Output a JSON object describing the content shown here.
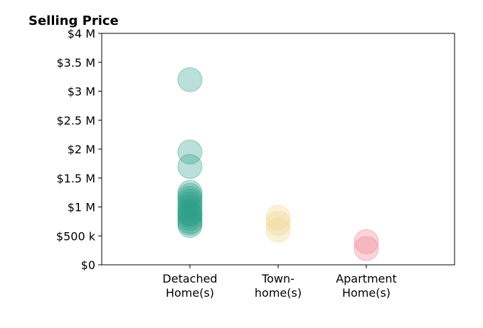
{
  "chart_data": {
    "type": "scatter",
    "title": "Selling Price",
    "xlabel": "",
    "ylabel": "",
    "ylim": [
      0,
      4000000
    ],
    "yticks": [
      {
        "value": 0,
        "label": "$0"
      },
      {
        "value": 500000,
        "label": "$500 k"
      },
      {
        "value": 1000000,
        "label": "$1 M"
      },
      {
        "value": 1500000,
        "label": "$1.5 M"
      },
      {
        "value": 2000000,
        "label": "$2 M"
      },
      {
        "value": 2500000,
        "label": "$2.5 M"
      },
      {
        "value": 3000000,
        "label": "$3 M"
      },
      {
        "value": 3500000,
        "label": "$3.5 M"
      },
      {
        "value": 4000000,
        "label": "$4 M"
      }
    ],
    "categories": [
      [
        "Detached",
        "Home(s)"
      ],
      [
        "Town-",
        "home(s)"
      ],
      [
        "Apartment",
        "Home(s)"
      ]
    ],
    "grid": false,
    "legend": "none",
    "series": [
      {
        "category_index": 0,
        "color": "#2aa08a",
        "values": [
          3200000,
          1950000,
          1700000,
          1250000,
          1200000,
          1150000,
          1100000,
          1050000,
          1000000,
          950000,
          900000,
          880000,
          850000,
          800000,
          750000,
          720000,
          680000
        ]
      },
      {
        "category_index": 1,
        "color": "#f0d48a",
        "values": [
          820000,
          720000,
          600000
        ]
      },
      {
        "category_index": 2,
        "color": "#f07a8a",
        "values": [
          400000,
          280000
        ]
      }
    ]
  }
}
